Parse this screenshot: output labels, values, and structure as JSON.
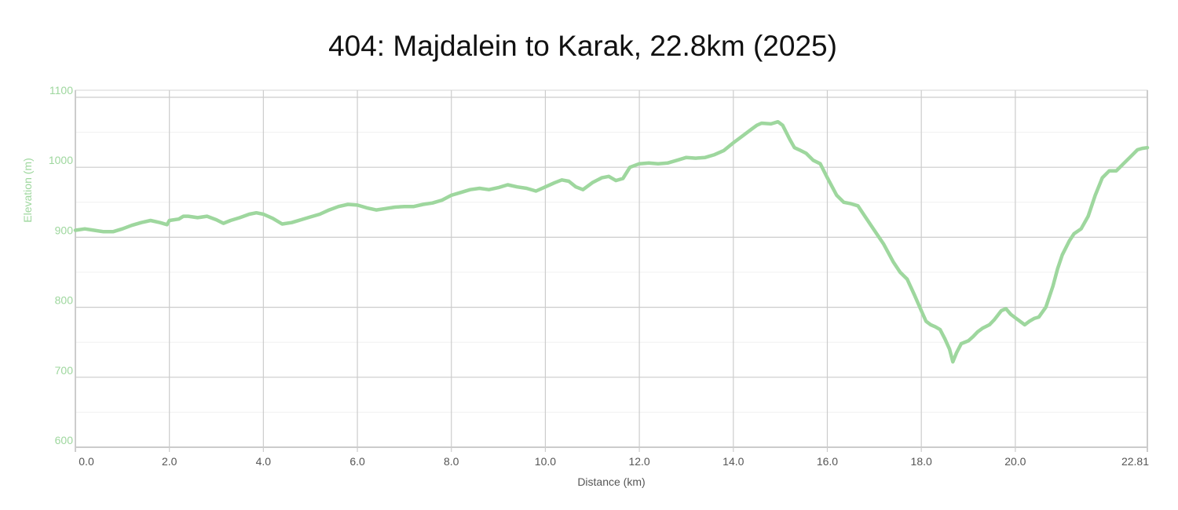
{
  "chart_data": {
    "type": "area",
    "title": "404: Majdalein to Karak, 22.8km (2025)",
    "xlabel": "Distance (km)",
    "ylabel": "Elevation (m)",
    "xlim": [
      0,
      22.81
    ],
    "ylim": [
      600,
      1100
    ],
    "x_ticks": [
      0,
      2,
      4,
      6,
      8,
      10,
      12,
      14,
      16,
      18,
      20,
      22.81
    ],
    "x_tick_labels": [
      "0.0",
      "2.0",
      "4.0",
      "6.0",
      "8.0",
      "10.0",
      "12.0",
      "14.0",
      "16.0",
      "18.0",
      "20.0",
      "22.81"
    ],
    "y_ticks": [
      600,
      700,
      800,
      900,
      1000,
      1100
    ],
    "y_tick_labels": [
      "600",
      "700",
      "800",
      "900",
      "1000",
      "1100"
    ],
    "grid": true,
    "colors": {
      "series": "#9ed79e",
      "y_axis_text": "#9ed79e",
      "grid": "#cccccc",
      "x_axis_text": "#555555"
    },
    "series": [
      {
        "x": [
          0.0,
          0.2,
          0.4,
          0.6,
          0.8,
          1.0,
          1.2,
          1.4,
          1.6,
          1.8,
          1.95,
          2.0,
          2.2,
          2.3,
          2.4,
          2.6,
          2.8,
          3.0,
          3.15,
          3.3,
          3.5,
          3.7,
          3.85,
          4.0,
          4.2,
          4.4,
          4.6,
          4.8,
          5.0,
          5.2,
          5.4,
          5.6,
          5.8,
          6.0,
          6.2,
          6.4,
          6.6,
          6.8,
          7.0,
          7.2,
          7.4,
          7.6,
          7.8,
          8.0,
          8.2,
          8.4,
          8.6,
          8.8,
          9.0,
          9.2,
          9.4,
          9.6,
          9.8,
          10.0,
          10.2,
          10.35,
          10.5,
          10.65,
          10.8,
          11.0,
          11.2,
          11.35,
          11.5,
          11.65,
          11.8,
          12.0,
          12.2,
          12.4,
          12.6,
          12.8,
          13.0,
          13.2,
          13.4,
          13.6,
          13.8,
          14.0,
          14.2,
          14.4,
          14.5,
          14.6,
          14.8,
          14.95,
          15.05,
          15.2,
          15.3,
          15.4,
          15.55,
          15.7,
          15.85,
          16.0,
          16.2,
          16.35,
          16.5,
          16.65,
          16.8,
          17.0,
          17.2,
          17.4,
          17.55,
          17.7,
          17.85,
          18.0,
          18.1,
          18.2,
          18.3,
          18.4,
          18.5,
          18.6,
          18.67,
          18.75,
          18.85,
          19.0,
          19.1,
          19.2,
          19.3,
          19.45,
          19.55,
          19.7,
          19.8,
          19.9,
          20.0,
          20.1,
          20.2,
          20.3,
          20.4,
          20.5,
          20.65,
          20.8,
          20.9,
          21.0,
          21.15,
          21.25,
          21.4,
          21.55,
          21.7,
          21.85,
          22.0,
          22.15,
          22.3,
          22.45,
          22.6,
          22.7,
          22.81
        ],
        "y": [
          910,
          912,
          910,
          908,
          908,
          912,
          917,
          921,
          924,
          921,
          918,
          924,
          926,
          930,
          930,
          928,
          930,
          925,
          920,
          924,
          928,
          933,
          935,
          933,
          927,
          919,
          921,
          925,
          929,
          933,
          939,
          944,
          947,
          946,
          942,
          939,
          941,
          943,
          944,
          944,
          947,
          949,
          953,
          960,
          964,
          968,
          970,
          968,
          971,
          975,
          972,
          970,
          966,
          972,
          978,
          982,
          980,
          972,
          968,
          978,
          985,
          987,
          981,
          984,
          1000,
          1005,
          1006,
          1005,
          1006,
          1010,
          1014,
          1013,
          1014,
          1018,
          1024,
          1035,
          1045,
          1055,
          1060,
          1063,
          1062,
          1065,
          1060,
          1040,
          1028,
          1025,
          1020,
          1010,
          1005,
          985,
          960,
          950,
          948,
          945,
          930,
          910,
          890,
          865,
          850,
          840,
          818,
          795,
          780,
          775,
          772,
          768,
          755,
          740,
          722,
          735,
          748,
          752,
          758,
          765,
          770,
          775,
          782,
          795,
          798,
          790,
          785,
          780,
          775,
          780,
          784,
          786,
          800,
          830,
          855,
          875,
          895,
          905,
          912,
          930,
          960,
          985,
          995,
          995,
          1005,
          1015,
          1025,
          1027,
          1028
        ]
      }
    ]
  }
}
